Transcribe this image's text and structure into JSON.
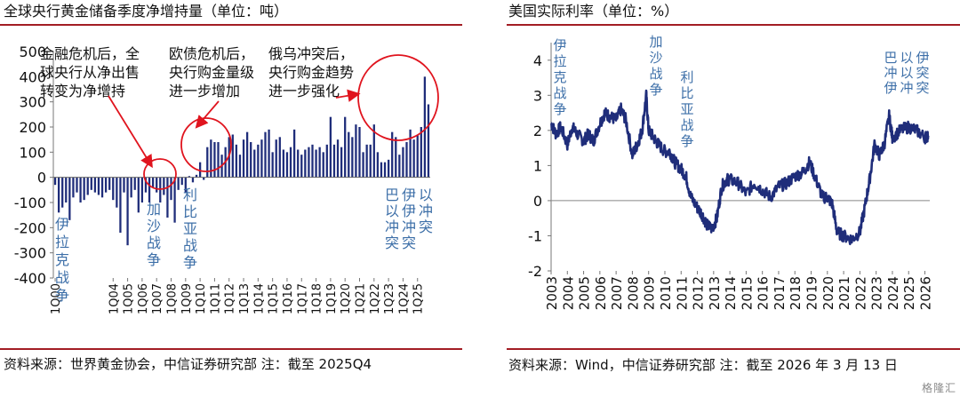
{
  "left": {
    "title": "全球央行黄金储备季度净增持量（单位：吨）",
    "source": "资料来源：世界黄金协会，中信证券研究部   注：截至 2025Q4",
    "chart_data": {
      "type": "bar",
      "ylim": [
        -400,
        500
      ],
      "yticks": [
        -400,
        -300,
        -200,
        -100,
        0,
        100,
        200,
        300,
        400,
        500
      ],
      "tick_labels": [
        "1Q00",
        "1Q04",
        "1Q05",
        "1Q06",
        "1Q07",
        "1Q08",
        "1Q09",
        "1Q10",
        "1Q11",
        "1Q12",
        "1Q13",
        "1Q14",
        "1Q15",
        "1Q16",
        "1Q17",
        "1Q18",
        "1Q19",
        "1Q20",
        "1Q21",
        "1Q22",
        "1Q23",
        "1Q24",
        "1Q25"
      ],
      "tick_positions": [
        0,
        16,
        20,
        24,
        28,
        32,
        36,
        40,
        44,
        48,
        52,
        56,
        60,
        64,
        68,
        72,
        76,
        80,
        84,
        88,
        92,
        96,
        100
      ],
      "n_bars": 104,
      "values": [
        -30,
        -140,
        -120,
        -100,
        -170,
        -80,
        -60,
        -100,
        -90,
        -70,
        -50,
        -60,
        -70,
        -80,
        -60,
        -50,
        -90,
        -120,
        -220,
        -60,
        -270,
        -80,
        -50,
        -140,
        -100,
        -60,
        -100,
        -40,
        -60,
        -100,
        -70,
        -160,
        -90,
        -180,
        -50,
        -30,
        -60,
        5,
        -20,
        10,
        60,
        -10,
        120,
        150,
        140,
        140,
        90,
        120,
        160,
        170,
        130,
        90,
        150,
        180,
        140,
        110,
        130,
        150,
        180,
        190,
        100,
        150,
        160,
        110,
        100,
        120,
        190,
        110,
        90,
        110,
        120,
        130,
        110,
        120,
        100,
        130,
        240,
        130,
        150,
        120,
        240,
        180,
        160,
        210,
        200,
        100,
        130,
        130,
        210,
        100,
        60,
        60,
        70,
        180,
        160,
        90,
        120,
        140,
        190,
        150,
        170,
        200,
        400,
        290
      ],
      "annotations": [
        {
          "text": "金融危机后，全球央行从净出售转变为净增持"
        },
        {
          "text": "欧债危机后，央行购金量级进一步增加"
        },
        {
          "text": "俄乌冲突后，央行购金趋势进一步强化"
        }
      ],
      "events": [
        {
          "text": "伊拉克战争"
        },
        {
          "text": "加沙战争"
        },
        {
          "text": "利比亚战争"
        },
        {
          "text": "巴以冲突",
          "vertical_text": "巴伊以以伊冲冲冲突突突"
        }
      ]
    }
  },
  "right": {
    "title": "美国实际利率（单位：%）",
    "source": "资料来源：Wind，中信证券研究部   注：截至 2026 年 3 月 13 日",
    "chart_data": {
      "type": "line",
      "ylim": [
        -2,
        4.5
      ],
      "yticks": [
        -2,
        -1,
        0,
        1,
        2,
        3,
        4
      ],
      "xlim": [
        2003.0,
        2026.3
      ],
      "xtick_labels": [
        "2003",
        "2004",
        "2005",
        "2006",
        "2007",
        "2008",
        "2009",
        "2010",
        "2011",
        "2012",
        "2013",
        "2014",
        "2015",
        "2016",
        "2017",
        "2018",
        "2019",
        "2020",
        "2021",
        "2022",
        "2023",
        "2024",
        "2025",
        "2026"
      ],
      "x": [
        2003.0,
        2003.3,
        2003.6,
        2004.0,
        2004.3,
        2004.6,
        2005.0,
        2005.3,
        2005.6,
        2006.0,
        2006.3,
        2006.6,
        2007.0,
        2007.3,
        2007.6,
        2008.0,
        2008.3,
        2008.6,
        2008.85,
        2009.0,
        2009.3,
        2009.6,
        2010.0,
        2010.3,
        2010.6,
        2011.0,
        2011.3,
        2011.6,
        2012.0,
        2012.3,
        2012.6,
        2012.9,
        2013.2,
        2013.5,
        2013.8,
        2014.0,
        2014.5,
        2015.0,
        2015.5,
        2016.0,
        2016.5,
        2017.0,
        2017.5,
        2018.0,
        2018.5,
        2018.9,
        2019.3,
        2019.7,
        2020.0,
        2020.3,
        2020.6,
        2021.0,
        2021.5,
        2022.0,
        2022.3,
        2022.6,
        2022.9,
        2023.2,
        2023.5,
        2023.8,
        2024.0,
        2024.5,
        2025.0,
        2025.5,
        2026.0,
        2026.2
      ],
      "y": [
        2.2,
        1.9,
        2.1,
        1.6,
        2.1,
        1.9,
        1.7,
        1.9,
        1.7,
        2.2,
        2.5,
        2.4,
        2.3,
        2.6,
        2.3,
        1.3,
        1.6,
        2.0,
        3.0,
        2.0,
        1.8,
        1.6,
        1.4,
        1.4,
        1.1,
        0.9,
        0.7,
        0.1,
        -0.2,
        -0.4,
        -0.7,
        -0.8,
        -0.5,
        0.4,
        0.6,
        0.6,
        0.5,
        0.2,
        0.5,
        0.3,
        0.1,
        0.4,
        0.5,
        0.7,
        0.8,
        1.1,
        0.6,
        0.1,
        0.1,
        -0.1,
        -0.9,
        -1.0,
        -1.1,
        -0.9,
        -0.2,
        0.6,
        1.6,
        1.3,
        1.6,
        2.4,
        1.8,
        2.0,
        2.1,
        2.0,
        1.8,
        1.85
      ],
      "events": [
        {
          "text": "伊拉克战争"
        },
        {
          "text": "加沙战争"
        },
        {
          "text": "利比亚战争"
        },
        {
          "text": "巴以冲突",
          "vertical_text": "巴以伊冲以突伊冲突"
        }
      ]
    }
  },
  "watermark": "格隆汇",
  "colors": {
    "bar": "#1f2d7a",
    "line": "#1f2d7a",
    "rule": "#a31d24",
    "circle": "#e0141e",
    "event": "#3d6fa8",
    "text": "#111111"
  }
}
